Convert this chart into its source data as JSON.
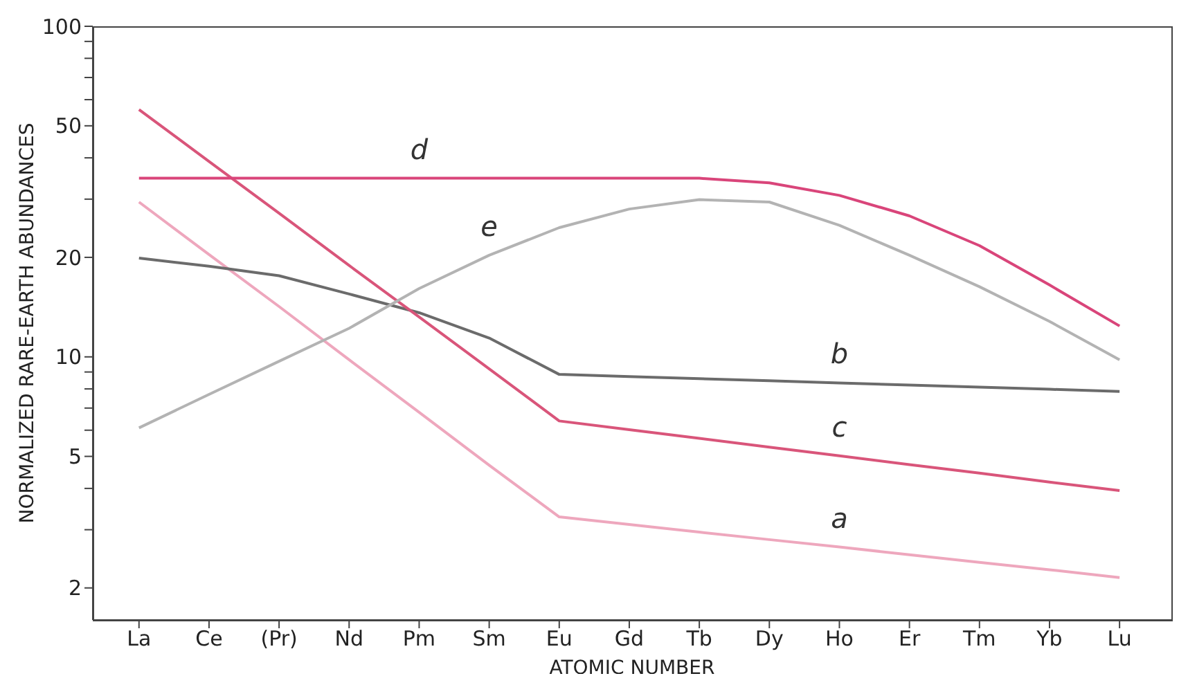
{
  "chart_data": {
    "type": "line",
    "xlabel": "ATOMIC NUMBER",
    "ylabel": "NORMALIZED RARE-EARTH ABUNDANCES",
    "categories": [
      "La",
      "Ce",
      "(Pr)",
      "Nd",
      "Pm",
      "Sm",
      "Eu",
      "Gd",
      "Tb",
      "Dy",
      "Ho",
      "Er",
      "Tm",
      "Yb",
      "Lu"
    ],
    "log": "y",
    "ylim": [
      1.6,
      100
    ],
    "yticks": [
      2,
      {
        "value": 3,
        "label": null
      },
      {
        "value": 4,
        "label": null
      },
      5,
      {
        "value": 6,
        "label": null
      },
      {
        "value": 7,
        "label": null
      },
      {
        "value": 8,
        "label": null
      },
      {
        "value": 9,
        "label": null
      },
      10,
      20,
      {
        "value": 30,
        "label": null
      },
      {
        "value": 40,
        "label": null
      },
      50,
      {
        "value": 60,
        "label": null
      },
      {
        "value": 70,
        "label": null
      },
      {
        "value": 80,
        "label": null
      },
      {
        "value": 90,
        "label": null
      },
      100
    ],
    "grid": false,
    "legend": false,
    "marker": "none",
    "line_style": "solid",
    "series": [
      {
        "name": "a",
        "color": "#eea7bd",
        "values": [
          29.4,
          20.4,
          14.2,
          9.8,
          6.8,
          4.7,
          3.28,
          3.11,
          2.95,
          2.8,
          2.66,
          2.52,
          2.39,
          2.27,
          2.15
        ]
      },
      {
        "name": "b",
        "color": "#6b6b6b",
        "values": [
          19.9,
          18.8,
          17.6,
          15.5,
          13.6,
          11.4,
          8.85,
          8.72,
          8.59,
          8.47,
          8.34,
          8.22,
          8.1,
          7.98,
          7.86
        ]
      },
      {
        "name": "c",
        "color": "#d9557a",
        "values": [
          56,
          39,
          27.2,
          18.9,
          13.2,
          9.2,
          6.4,
          6.02,
          5.67,
          5.33,
          5.02,
          4.72,
          4.45,
          4.18,
          3.94
        ]
      },
      {
        "name": "d",
        "color": "#d9457a",
        "values": [
          34.7,
          34.7,
          34.7,
          34.7,
          34.7,
          34.7,
          34.7,
          34.7,
          34.7,
          33.6,
          30.8,
          26.7,
          21.7,
          16.5,
          12.4
        ]
      },
      {
        "name": "e",
        "color": "#b3b3b3",
        "values": [
          6.1,
          7.7,
          9.7,
          12.2,
          16.1,
          20.3,
          24.6,
          28,
          29.9,
          29.4,
          25,
          20.3,
          16.3,
          12.8,
          9.8
        ]
      }
    ]
  }
}
